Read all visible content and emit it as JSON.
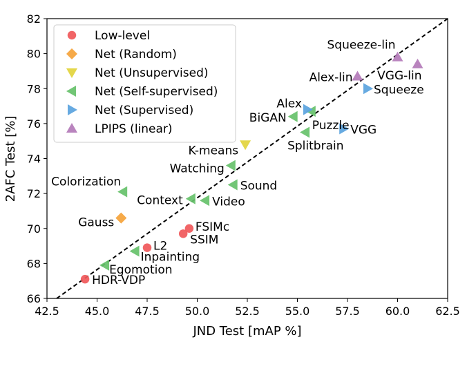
{
  "chart_data": {
    "type": "scatter",
    "title": "",
    "xlabel": "JND Test [mAP %]",
    "ylabel": "2AFC Test [%]",
    "xlim": [
      42.5,
      62.5
    ],
    "ylim": [
      66,
      82
    ],
    "xticks": [
      "42.5",
      "45.0",
      "47.5",
      "50.0",
      "52.5",
      "55.0",
      "57.5",
      "60.0",
      "62.5"
    ],
    "yticks": [
      "66",
      "68",
      "70",
      "72",
      "74",
      "76",
      "78",
      "80",
      "82"
    ],
    "grid": false,
    "legend_position": "top-left",
    "reference_line": {
      "style": "dashed",
      "color": "#000000",
      "x": [
        42.5,
        62.5
      ],
      "y": [
        65.6,
        82.0
      ]
    },
    "series": [
      {
        "name": "Low-level",
        "marker": "circle",
        "color": "#f0585a",
        "points": [
          {
            "label": "HDR-VDP",
            "x": 44.4,
            "y": 67.1
          },
          {
            "label": "L2",
            "x": 47.5,
            "y": 68.9
          },
          {
            "label": "SSIM",
            "x": 49.3,
            "y": 69.7
          },
          {
            "label": "FSIMc",
            "x": 49.6,
            "y": 70.0
          }
        ]
      },
      {
        "name": "Net (Random)",
        "marker": "diamond",
        "color": "#f5a33a",
        "points": [
          {
            "label": "Gauss",
            "x": 46.2,
            "y": 70.6
          }
        ]
      },
      {
        "name": "Net (Unsupervised)",
        "marker": "triangle-down",
        "color": "#e2d43c",
        "points": [
          {
            "label": "K-means",
            "x": 52.4,
            "y": 74.8
          }
        ]
      },
      {
        "name": "Net (Self-supervised)",
        "marker": "triangle-left",
        "color": "#66c16a",
        "points": [
          {
            "label": "Egomotion",
            "x": 45.4,
            "y": 67.9
          },
          {
            "label": "Inpainting",
            "x": 46.9,
            "y": 68.7
          },
          {
            "label": "Colorization",
            "x": 46.3,
            "y": 72.1
          },
          {
            "label": "Context",
            "x": 49.7,
            "y": 71.7
          },
          {
            "label": "Video",
            "x": 50.4,
            "y": 71.6
          },
          {
            "label": "Watching",
            "x": 51.7,
            "y": 73.6
          },
          {
            "label": "Sound",
            "x": 51.8,
            "y": 72.5
          },
          {
            "label": "Splitbrain",
            "x": 55.4,
            "y": 75.5
          },
          {
            "label": "BiGAN",
            "x": 54.8,
            "y": 76.4
          },
          {
            "label": "Puzzle",
            "x": 55.7,
            "y": 76.7
          }
        ]
      },
      {
        "name": "Net (Supervised)",
        "marker": "triangle-right",
        "color": "#5aa3de",
        "points": [
          {
            "label": "Alex",
            "x": 55.5,
            "y": 76.8
          },
          {
            "label": "VGG",
            "x": 57.3,
            "y": 75.7
          },
          {
            "label": "Squeeze",
            "x": 58.5,
            "y": 78.0
          }
        ]
      },
      {
        "name": "LPIPS (linear)",
        "marker": "triangle-up",
        "color": "#b37ab8",
        "points": [
          {
            "label": "Alex-lin",
            "x": 58.0,
            "y": 78.7
          },
          {
            "label": "Squeeze-lin",
            "x": 60.0,
            "y": 79.8
          },
          {
            "label": "VGG-lin",
            "x": 61.0,
            "y": 79.4
          }
        ]
      }
    ]
  }
}
